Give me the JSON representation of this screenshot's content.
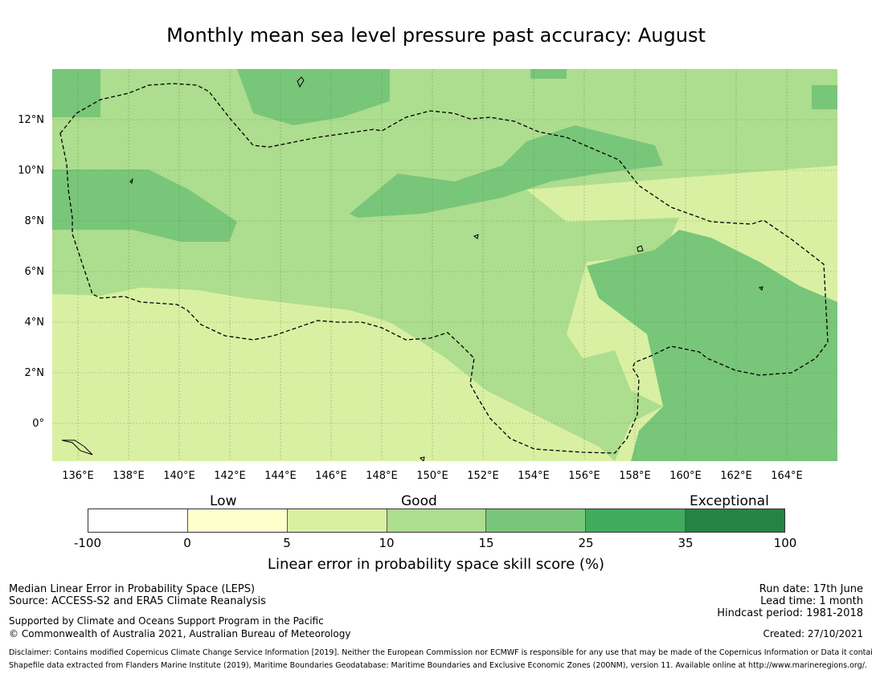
{
  "title": "Monthly mean sea level pressure past accuracy: August",
  "map": {
    "lat_labels": [
      "12°N",
      "10°N",
      "8°N",
      "6°N",
      "4°N",
      "2°N",
      "0°"
    ],
    "lon_labels": [
      "136°E",
      "138°E",
      "140°E",
      "142°E",
      "144°E",
      "146°E",
      "148°E",
      "150°E",
      "152°E",
      "154°E",
      "156°E",
      "158°E",
      "160°E",
      "162°E",
      "164°E"
    ],
    "extent": {
      "lon_min": 135.0,
      "lon_max": 166.0,
      "lat_min": -1.5,
      "lat_max": 14.0
    }
  },
  "colorbar": {
    "categories": [
      "Low",
      "Good",
      "Exceptional"
    ],
    "ticks": [
      "-100",
      "0",
      "5",
      "10",
      "15",
      "25",
      "35",
      "100"
    ],
    "colors": [
      "#ffffff",
      "#ffffcc",
      "#d9f0a3",
      "#addd8e",
      "#78c679",
      "#41ab5d",
      "#238443"
    ],
    "label": "Linear error in probability space skill score (%)"
  },
  "footer": {
    "left": {
      "line1": "Median Linear Error in Probability Space (LEPS)",
      "line2": "Source: ACCESS-S2 and ERA5 Climate Reanalysis",
      "line3": "Supported by Climate and Oceans Support Program in the Pacific",
      "line4": "© Commonwealth of Australia 2021, Australian Bureau of Meteorology"
    },
    "right": {
      "run_date": "Run date: 17th June",
      "lead_time": "Lead time: 1 month",
      "hindcast": "Hindcast period: 1981-2018",
      "created": "Created: 27/10/2021"
    },
    "disclaimer": "Disclaimer: Contains modified Copernicus Climate Change Service Information [2019]. Neither the European Commission nor ECMWF is responsible for any use that may be made of the Copernicus Information or Data it contains.",
    "shapefile": "Shapefile data extracted from Flanders Marine Institute (2019), Maritime Boundaries Geodatabase: Maritime Boundaries and Exclusive Economic Zones (200NM), version 11. Available online at http://www.marineregions.org/."
  }
}
